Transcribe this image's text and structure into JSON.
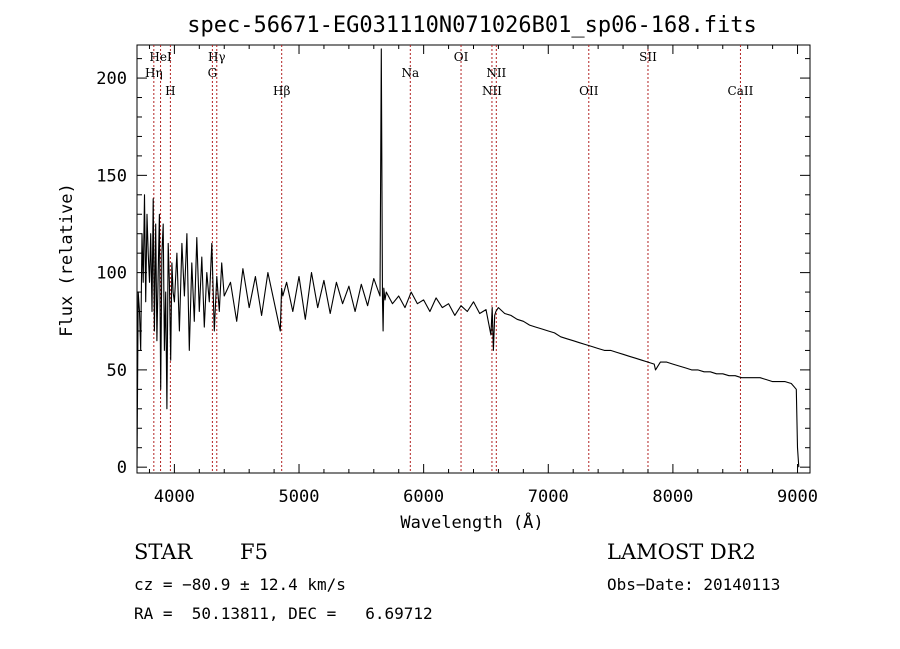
{
  "chart_data": {
    "type": "line",
    "title": "spec-56671-EG031110N071026B01_sp06-168.fits",
    "xlabel": "Wavelength (Å)",
    "ylabel": "Flux (relative)",
    "xlim": [
      3700,
      9100
    ],
    "ylim": [
      -3,
      217
    ],
    "xticks": [
      4000,
      5000,
      6000,
      7000,
      8000,
      9000
    ],
    "yticks": [
      0,
      50,
      100,
      150,
      200
    ],
    "grid": false,
    "series": [
      {
        "color": "#000000",
        "x": [
          3700,
          3710,
          3720,
          3730,
          3740,
          3750,
          3760,
          3770,
          3780,
          3790,
          3800,
          3810,
          3820,
          3830,
          3840,
          3850,
          3860,
          3870,
          3880,
          3890,
          3900,
          3910,
          3920,
          3930,
          3940,
          3950,
          3960,
          3970,
          3980,
          3990,
          4000,
          4020,
          4040,
          4060,
          4080,
          4100,
          4120,
          4140,
          4160,
          4180,
          4200,
          4220,
          4240,
          4260,
          4280,
          4300,
          4320,
          4340,
          4360,
          4380,
          4400,
          4450,
          4500,
          4550,
          4600,
          4650,
          4700,
          4750,
          4800,
          4850,
          4860,
          4870,
          4900,
          4950,
          5000,
          5050,
          5100,
          5150,
          5200,
          5250,
          5300,
          5350,
          5400,
          5450,
          5500,
          5550,
          5600,
          5650,
          5660,
          5670,
          5675,
          5680,
          5690,
          5700,
          5750,
          5800,
          5850,
          5900,
          5950,
          6000,
          6050,
          6100,
          6150,
          6200,
          6250,
          6300,
          6350,
          6400,
          6450,
          6500,
          6540,
          6550,
          6560,
          6570,
          6580,
          6600,
          6650,
          6700,
          6750,
          6800,
          6850,
          6900,
          6950,
          7000,
          7050,
          7100,
          7150,
          7200,
          7250,
          7300,
          7350,
          7400,
          7450,
          7500,
          7550,
          7600,
          7650,
          7700,
          7750,
          7800,
          7850,
          7860,
          7900,
          7950,
          8000,
          8050,
          8100,
          8150,
          8200,
          8250,
          8300,
          8350,
          8400,
          8450,
          8500,
          8550,
          8600,
          8650,
          8700,
          8750,
          8800,
          8850,
          8900,
          8950,
          8990,
          9000,
          9010
        ],
        "y": [
          0,
          90,
          80,
          60,
          120,
          95,
          140,
          85,
          130,
          110,
          95,
          120,
          80,
          138,
          70,
          125,
          65,
          100,
          130,
          40,
          110,
          125,
          60,
          90,
          30,
          115,
          95,
          55,
          105,
          90,
          85,
          110,
          70,
          115,
          88,
          120,
          60,
          105,
          75,
          118,
          80,
          108,
          72,
          100,
          85,
          115,
          70,
          98,
          80,
          105,
          88,
          95,
          75,
          102,
          82,
          98,
          78,
          100,
          85,
          70,
          92,
          88,
          95,
          80,
          98,
          76,
          100,
          82,
          96,
          79,
          95,
          84,
          93,
          80,
          94,
          83,
          97,
          88,
          215,
          85,
          70,
          92,
          86,
          90,
          84,
          88,
          82,
          90,
          84,
          86,
          80,
          87,
          82,
          84,
          78,
          83,
          80,
          85,
          79,
          81,
          68,
          82,
          60,
          78,
          80,
          82,
          79,
          78,
          76,
          75,
          73,
          72,
          71,
          70,
          69,
          67,
          66,
          65,
          64,
          63,
          62,
          61,
          60,
          60,
          59,
          58,
          57,
          56,
          55,
          54,
          53,
          50,
          54,
          54,
          53,
          52,
          51,
          50,
          50,
          49,
          49,
          48,
          48,
          47,
          47,
          46,
          46,
          46,
          46,
          45,
          44,
          44,
          44,
          43,
          40,
          10,
          0
        ]
      }
    ],
    "annotations": [
      {
        "label": "HeI",
        "x": 3889,
        "tier": 0
      },
      {
        "label": "Hη",
        "x": 3835,
        "tier": 1
      },
      {
        "label": "H",
        "x": 3968,
        "tier": 2
      },
      {
        "label": "Hγ",
        "x": 4340,
        "tier": 0
      },
      {
        "label": "G",
        "x": 4305,
        "tier": 1
      },
      {
        "label": "Hβ",
        "x": 4861,
        "tier": 2
      },
      {
        "label": "Na",
        "x": 5893,
        "tier": 1
      },
      {
        "label": "OI",
        "x": 6300,
        "tier": 0
      },
      {
        "label": "NII",
        "x": 6583,
        "tier": 1
      },
      {
        "label": "NII",
        "x": 6548,
        "tier": 2
      },
      {
        "label": "OII",
        "x": 7325,
        "tier": 2
      },
      {
        "label": "SII",
        "x": 7800,
        "tier": 0
      },
      {
        "label": "CaII",
        "x": 8542,
        "tier": 2
      }
    ]
  },
  "info": {
    "object_class": "STAR",
    "subclass": "F5",
    "survey": "LAMOST DR2",
    "redshift_line": "cz = −80.9 ± 12.4 km/s",
    "obs_date_line": "Obs−Date: 20140113",
    "coords_line": "RA =  50.13811, DEC =   6.69712"
  },
  "colors": {
    "line": "#000000",
    "marker_lines": "#b22222",
    "background": "#ffffff"
  }
}
